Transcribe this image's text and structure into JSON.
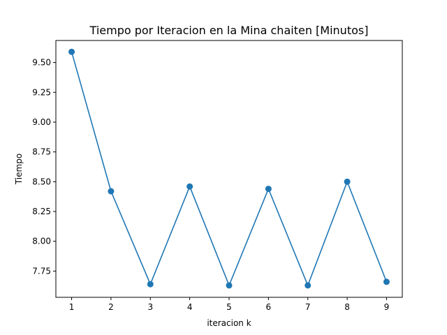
{
  "chart_data": {
    "type": "line",
    "title": "Tiempo por Iteracion en la Mina chaiten [Minutos]",
    "xlabel": "iteracion k",
    "ylabel": "Tiempo",
    "x": [
      1,
      2,
      3,
      4,
      5,
      6,
      7,
      8,
      9
    ],
    "y": [
      9.59,
      8.42,
      7.64,
      8.46,
      7.63,
      8.44,
      7.63,
      8.5,
      7.66
    ],
    "xlim": [
      0.6,
      9.4
    ],
    "ylim": [
      7.53,
      9.685
    ],
    "xticks": [
      1,
      2,
      3,
      4,
      5,
      6,
      7,
      8,
      9
    ],
    "xtick_labels": [
      "1",
      "2",
      "3",
      "4",
      "5",
      "6",
      "7",
      "8",
      "9"
    ],
    "yticks": [
      7.75,
      8.0,
      8.25,
      8.5,
      8.75,
      9.0,
      9.25,
      9.5
    ],
    "ytick_labels": [
      "7.75",
      "8.00",
      "8.25",
      "8.50",
      "8.75",
      "9.00",
      "9.25",
      "9.50"
    ],
    "grid": false,
    "color": "#1f77b4"
  }
}
